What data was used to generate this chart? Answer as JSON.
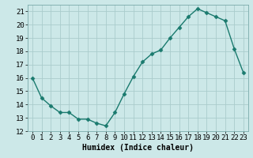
{
  "x": [
    0,
    1,
    2,
    3,
    4,
    5,
    6,
    7,
    8,
    9,
    10,
    11,
    12,
    13,
    14,
    15,
    16,
    17,
    18,
    19,
    20,
    21,
    22,
    23
  ],
  "y": [
    16.0,
    14.5,
    13.9,
    13.4,
    13.4,
    12.9,
    12.9,
    12.6,
    12.4,
    13.4,
    14.8,
    16.1,
    17.2,
    17.8,
    18.1,
    19.0,
    19.8,
    20.6,
    21.2,
    20.9,
    20.6,
    20.3,
    18.2,
    16.4
  ],
  "line_color": "#1a7a6e",
  "marker": "D",
  "markersize": 2.5,
  "linewidth": 1.0,
  "bg_color": "#cce8e8",
  "grid_color_major": "#aacccc",
  "grid_color_minor": "#c0dcdc",
  "xlabel": "Humidex (Indice chaleur)",
  "xlabel_fontsize": 7,
  "tick_fontsize": 6.5,
  "ylim": [
    12,
    21.5
  ],
  "xlim": [
    -0.5,
    23.5
  ],
  "yticks": [
    12,
    13,
    14,
    15,
    16,
    17,
    18,
    19,
    20,
    21
  ],
  "xticks": [
    0,
    1,
    2,
    3,
    4,
    5,
    6,
    7,
    8,
    9,
    10,
    11,
    12,
    13,
    14,
    15,
    16,
    17,
    18,
    19,
    20,
    21,
    22,
    23
  ]
}
